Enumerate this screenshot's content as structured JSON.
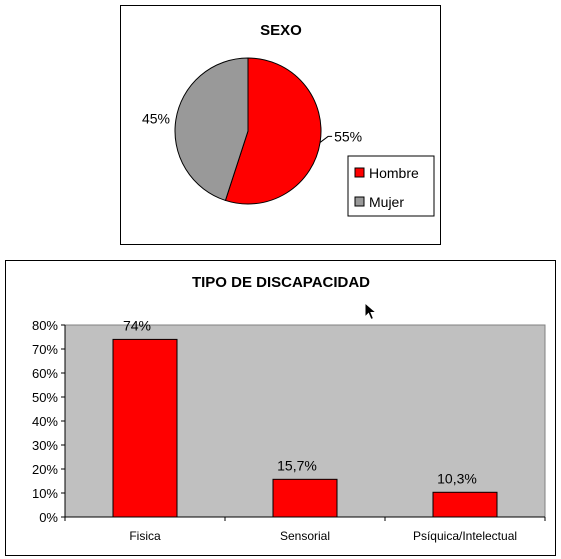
{
  "chart_data": [
    {
      "type": "pie",
      "title": "SEXO",
      "categories": [
        "Hombre",
        "Mujer"
      ],
      "values": [
        55,
        45
      ],
      "value_labels": [
        "55%",
        "45%"
      ],
      "colors": [
        "#ff0000",
        "#999999"
      ],
      "legend": "right"
    },
    {
      "type": "bar",
      "title": "TIPO DE DISCAPACIDAD",
      "categories": [
        "Fisica",
        "Sensorial",
        "Psíquica/Intelectual"
      ],
      "values": [
        74,
        15.7,
        10.3
      ],
      "value_labels": [
        "74%",
        "15,7%",
        "10,3%"
      ],
      "yticks": [
        "0%",
        "10%",
        "20%",
        "30%",
        "40%",
        "50%",
        "60%",
        "70%",
        "80%"
      ],
      "ylim": [
        0,
        80
      ],
      "bar_color": "#ff0000",
      "plot_background": "#c0c0c0",
      "grid": false
    }
  ]
}
